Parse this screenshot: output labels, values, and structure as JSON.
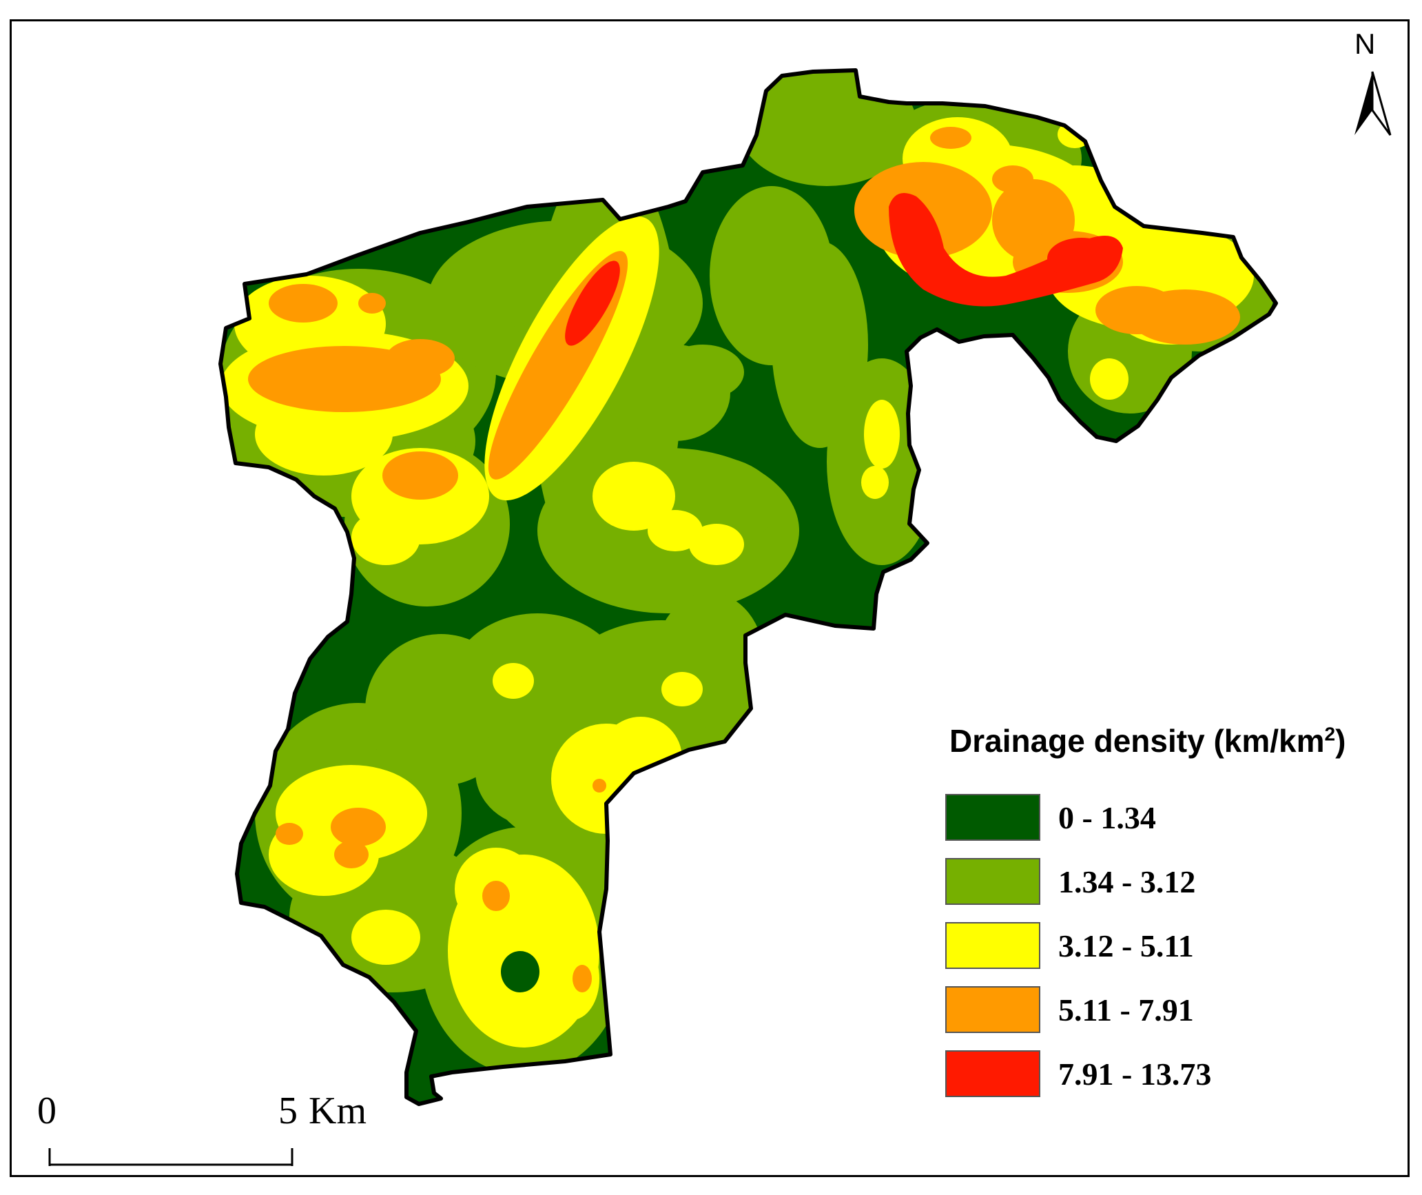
{
  "legend": {
    "title": "Drainage density (km/km",
    "title_sup": "2",
    "title_close": ")",
    "classes": [
      {
        "label": "0 - 1.34",
        "color": "#005a00"
      },
      {
        "label": "1.34 - 3.12",
        "color": "#76b000"
      },
      {
        "label": "3.12 - 5.11",
        "color": "#ffff00"
      },
      {
        "label": "5.11 - 7.91",
        "color": "#ff9a00"
      },
      {
        "label": "7.91 - 13.73",
        "color": "#ff1a00"
      }
    ]
  },
  "scale_bar": {
    "start_label": "0",
    "end_label": "5",
    "unit": "Km"
  },
  "north_arrow": {
    "label": "N",
    "icon": "north-arrow-icon"
  }
}
